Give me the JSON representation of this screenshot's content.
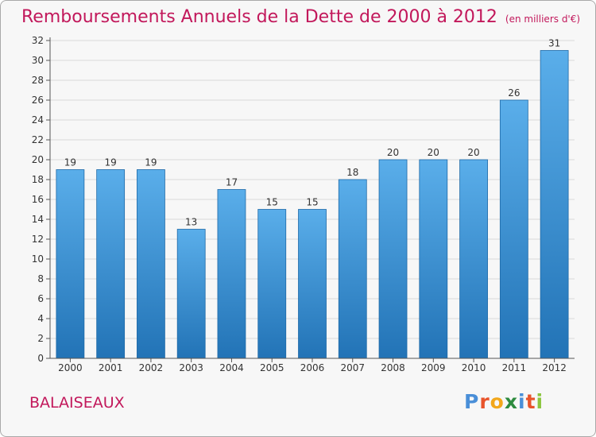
{
  "header": {
    "title": "Remboursements Annuels de la Dette de 2000 à 2012",
    "unit": "(en milliers d'€)"
  },
  "footer": {
    "commune": "BALAISEAUX",
    "logo_letters": [
      "P",
      "r",
      "o",
      "x",
      "i",
      "t",
      "i"
    ],
    "logo_colors": [
      "#4a8fd8",
      "#e8542b",
      "#f2a71b",
      "#2e8b3f",
      "#4a8fd8",
      "#e8542b",
      "#8cc63f"
    ]
  },
  "colors": {
    "accent": "#c2185b",
    "bar_top": "#5aaeea",
    "bar_bottom": "#2273b6",
    "grid": "#dadada"
  },
  "chart_data": {
    "type": "bar",
    "categories": [
      "2000",
      "2001",
      "2002",
      "2003",
      "2004",
      "2005",
      "2006",
      "2007",
      "2008",
      "2009",
      "2010",
      "2011",
      "2012"
    ],
    "values": [
      19,
      19,
      19,
      13,
      17,
      15,
      15,
      18,
      20,
      20,
      20,
      26,
      31
    ],
    "title": "Remboursements Annuels de la Dette de 2000 à 2012",
    "xlabel": "",
    "ylabel": "",
    "ylim": [
      0,
      32
    ],
    "yticks": [
      0,
      2,
      4,
      6,
      8,
      10,
      12,
      14,
      16,
      18,
      20,
      22,
      24,
      26,
      28,
      30,
      32
    ],
    "grid": true,
    "data_labels": true
  }
}
